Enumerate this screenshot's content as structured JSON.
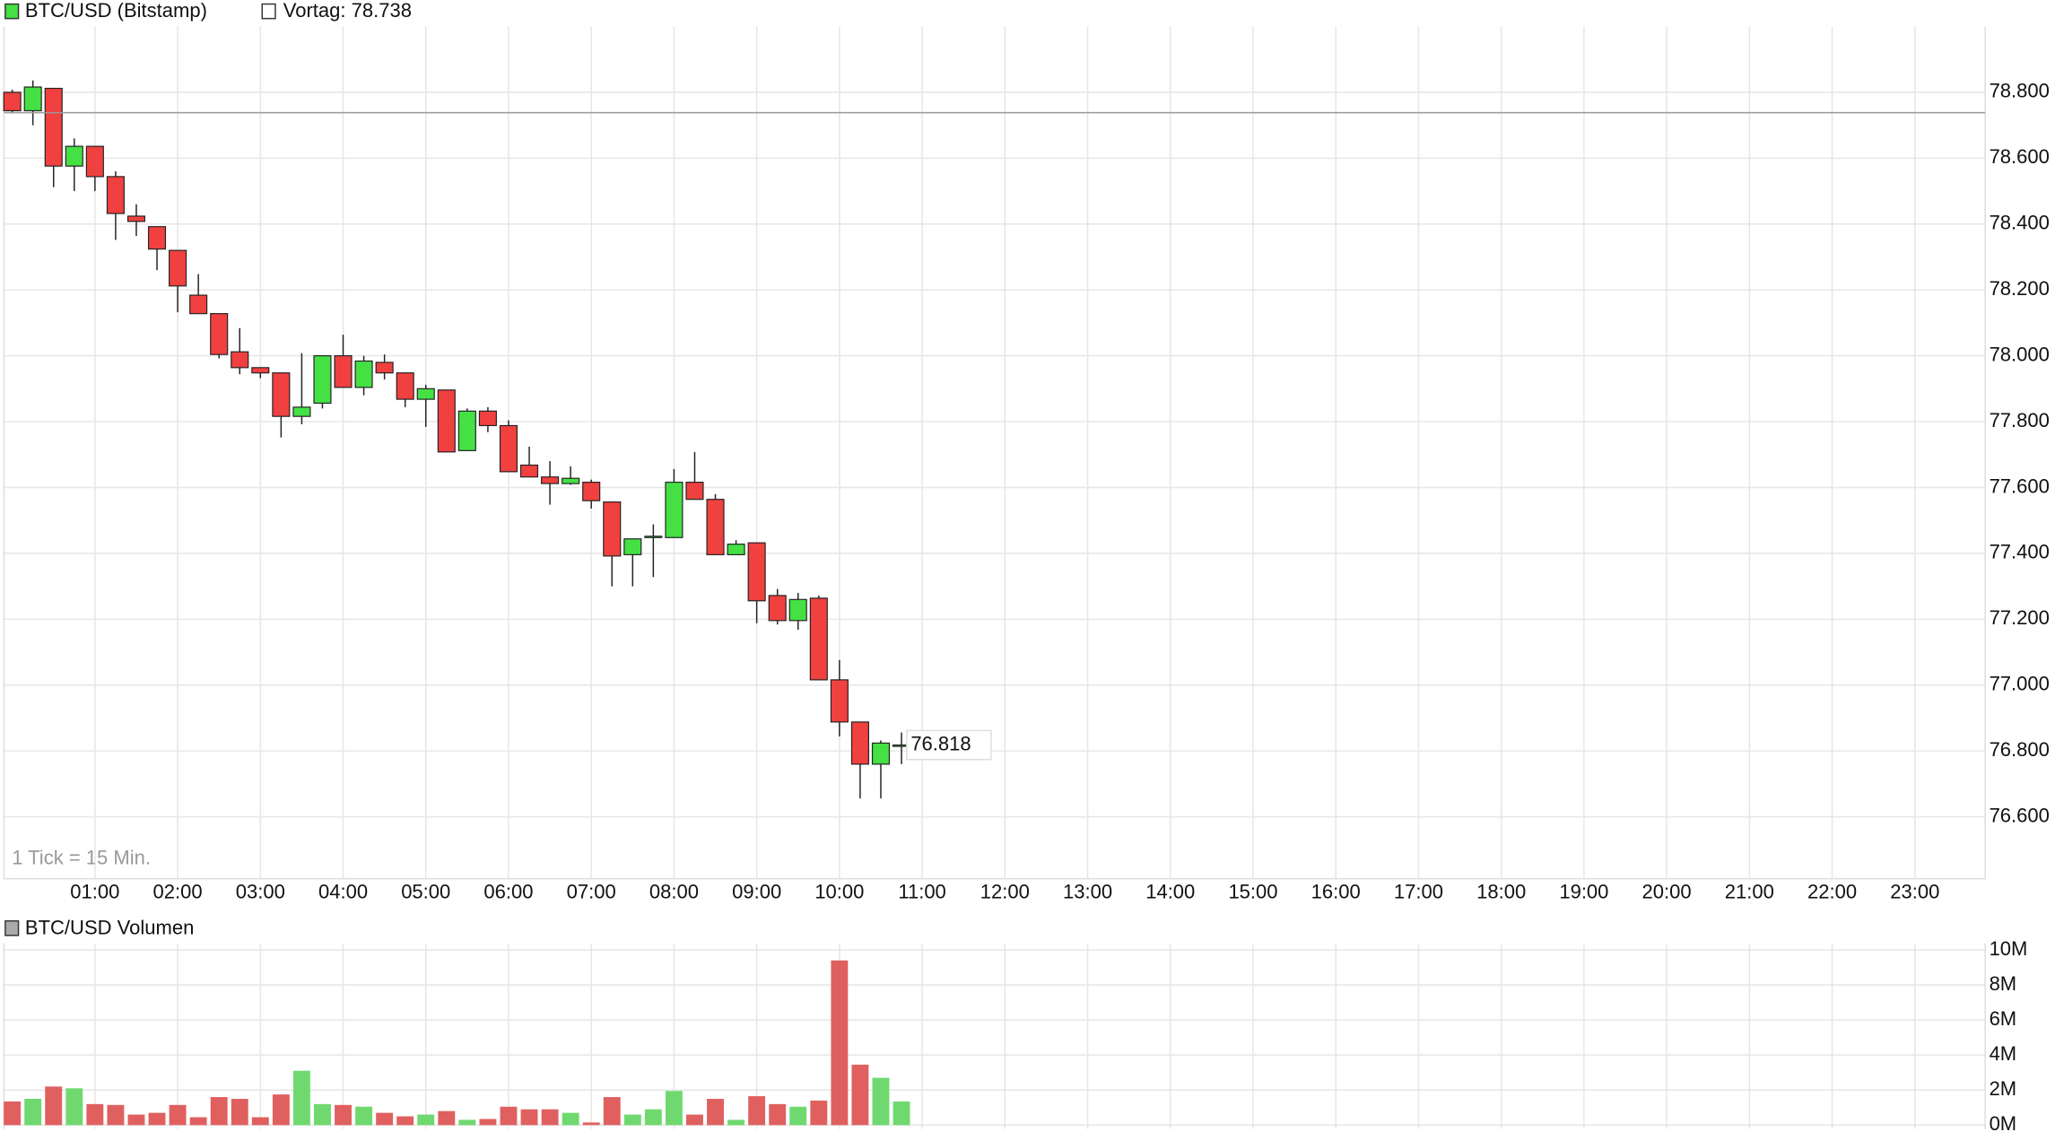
{
  "chart_data": [
    {
      "type": "candlestick",
      "name": "BTC/USD (Bitstamp)",
      "reference": {
        "value": 78738,
        "label": "Vortag: 78.738"
      },
      "note": "1 Tick = 15 Min.",
      "last_label": "76.818",
      "up_color": "#44e044",
      "down_color": "#f04040",
      "x": [
        0,
        0.25,
        0.5,
        0.75,
        1,
        1.25,
        1.5,
        1.75,
        2,
        2.25,
        2.5,
        2.75,
        3,
        3.25,
        3.5,
        3.75,
        4,
        4.25,
        4.5,
        4.75,
        5,
        5.25,
        5.5,
        5.75,
        6,
        6.25,
        6.5,
        6.75,
        7,
        7.25,
        7.5,
        7.75,
        8,
        8.25,
        8.5,
        8.75,
        9,
        9.25,
        9.5,
        9.75,
        10,
        10.25,
        10.5,
        10.75
      ],
      "open": [
        78800,
        78744,
        78812,
        78576,
        78636,
        78544,
        78424,
        78392,
        78320,
        78184,
        78128,
        78012,
        77964,
        77948,
        77816,
        77856,
        78000,
        77904,
        77980,
        77948,
        77868,
        77896,
        77712,
        77832,
        77788,
        77668,
        77632,
        77612,
        77616,
        77556,
        77396,
        77448,
        77448,
        77616,
        77564,
        77396,
        77432,
        77272,
        77196,
        77264,
        77016,
        76888,
        76760,
        76816
      ],
      "high": [
        78808,
        78836,
        78812,
        78660,
        78636,
        78560,
        78460,
        78392,
        78320,
        78248,
        78128,
        78084,
        77964,
        77948,
        78008,
        78000,
        78064,
        78000,
        78004,
        77948,
        77912,
        77896,
        77840,
        77844,
        77804,
        77724,
        77680,
        77664,
        77624,
        77556,
        77444,
        77488,
        77656,
        77708,
        77580,
        77440,
        77432,
        77292,
        77280,
        77272,
        77076,
        76888,
        76832,
        76856
      ],
      "low": [
        78736,
        78700,
        78512,
        78500,
        78500,
        78352,
        78364,
        78260,
        78132,
        78128,
        77992,
        77944,
        77932,
        77752,
        77792,
        77840,
        77904,
        77880,
        77928,
        77844,
        77784,
        77708,
        77712,
        77768,
        77648,
        77632,
        77548,
        77608,
        77536,
        77300,
        77300,
        77328,
        77448,
        77564,
        77396,
        77396,
        77188,
        77184,
        77168,
        77016,
        76844,
        76656,
        76656,
        76760
      ],
      "close": [
        78744,
        78816,
        78576,
        78636,
        78544,
        78432,
        78408,
        78324,
        78212,
        78128,
        78004,
        77964,
        77948,
        77816,
        77844,
        78000,
        77904,
        77984,
        77948,
        77868,
        77900,
        77708,
        77832,
        77788,
        77648,
        77632,
        77612,
        77628,
        77560,
        77392,
        77444,
        77452,
        77616,
        77564,
        77396,
        77428,
        77256,
        77196,
        77260,
        77016,
        76888,
        76760,
        76824,
        76818
      ],
      "xlim": [
        -0.1,
        23.85
      ],
      "xticks": [
        {
          "value": 1,
          "label": "01:00"
        },
        {
          "value": 2,
          "label": "02:00"
        },
        {
          "value": 3,
          "label": "03:00"
        },
        {
          "value": 4,
          "label": "04:00"
        },
        {
          "value": 5,
          "label": "05:00"
        },
        {
          "value": 6,
          "label": "06:00"
        },
        {
          "value": 7,
          "label": "07:00"
        },
        {
          "value": 8,
          "label": "08:00"
        },
        {
          "value": 9,
          "label": "09:00"
        },
        {
          "value": 10,
          "label": "10:00"
        },
        {
          "value": 11,
          "label": "11:00"
        },
        {
          "value": 12,
          "label": "12:00"
        },
        {
          "value": 13,
          "label": "13:00"
        },
        {
          "value": 14,
          "label": "14:00"
        },
        {
          "value": 15,
          "label": "15:00"
        },
        {
          "value": 16,
          "label": "16:00"
        },
        {
          "value": 17,
          "label": "17:00"
        },
        {
          "value": 18,
          "label": "18:00"
        },
        {
          "value": 19,
          "label": "19:00"
        },
        {
          "value": 20,
          "label": "20:00"
        },
        {
          "value": 21,
          "label": "21:00"
        },
        {
          "value": 22,
          "label": "22:00"
        },
        {
          "value": 23,
          "label": "23:00"
        }
      ],
      "ylim": [
        76412,
        79000
      ],
      "yticks": [
        {
          "value": 76600,
          "label": "76.600"
        },
        {
          "value": 76800,
          "label": "76.800"
        },
        {
          "value": 77000,
          "label": "77.000"
        },
        {
          "value": 77200,
          "label": "77.200"
        },
        {
          "value": 77400,
          "label": "77.400"
        },
        {
          "value": 77600,
          "label": "77.600"
        },
        {
          "value": 77800,
          "label": "77.800"
        },
        {
          "value": 78000,
          "label": "78.000"
        },
        {
          "value": 78200,
          "label": "78.200"
        },
        {
          "value": 78400,
          "label": "78.400"
        },
        {
          "value": 78600,
          "label": "78.600"
        },
        {
          "value": 78800,
          "label": "78.800"
        }
      ],
      "grid": true
    },
    {
      "type": "bar",
      "name": "BTC/USD Volumen",
      "up_color": "#6fd96f",
      "down_color": "#e06060",
      "x": [
        0,
        0.25,
        0.5,
        0.75,
        1,
        1.25,
        1.5,
        1.75,
        2,
        2.25,
        2.5,
        2.75,
        3,
        3.25,
        3.5,
        3.75,
        4,
        4.25,
        4.5,
        4.75,
        5,
        5.25,
        5.5,
        5.75,
        6,
        6.25,
        6.5,
        6.75,
        7,
        7.25,
        7.5,
        7.75,
        8,
        8.25,
        8.5,
        8.75,
        9,
        9.25,
        9.5,
        9.75,
        10,
        10.25,
        10.5,
        10.75
      ],
      "values": [
        1.35,
        1.5,
        2.2,
        2.1,
        1.2,
        1.15,
        0.6,
        0.7,
        1.15,
        0.45,
        1.6,
        1.5,
        0.45,
        1.75,
        3.1,
        1.2,
        1.15,
        1.05,
        0.7,
        0.5,
        0.6,
        0.8,
        0.3,
        0.35,
        1.05,
        0.9,
        0.9,
        0.7,
        0.15,
        1.6,
        0.6,
        0.9,
        1.95,
        0.6,
        1.5,
        0.3,
        1.65,
        1.2,
        1.05,
        1.4,
        9.4,
        3.45,
        2.7,
        1.35
      ],
      "ylim": [
        0,
        10
      ],
      "yticks": [
        {
          "value": 0,
          "label": "0M"
        },
        {
          "value": 2,
          "label": "2M"
        },
        {
          "value": 4,
          "label": "4M"
        },
        {
          "value": 6,
          "label": "6M"
        },
        {
          "value": 8,
          "label": "8M"
        },
        {
          "value": 10,
          "label": "10M"
        }
      ],
      "grid": true
    }
  ]
}
